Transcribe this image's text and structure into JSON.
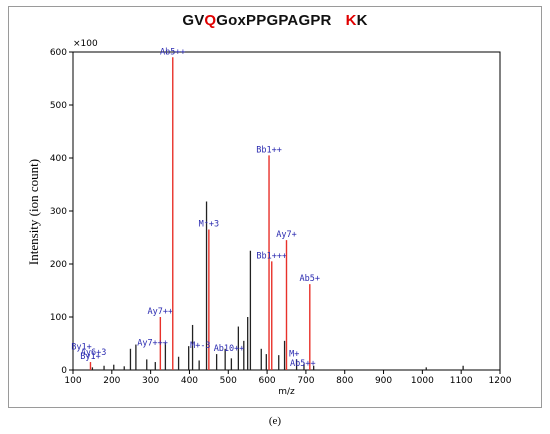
{
  "title": {
    "part1": "GV",
    "part2": "Q",
    "part3": "GoxPPGPAGPR",
    "part4": "K",
    "part5": "K"
  },
  "caption": "(e)",
  "colors": {
    "annotated": "#e8312a",
    "unannotated": "#222222",
    "label": "#2a2ab0",
    "highlight": "#e00000"
  },
  "chart_data": {
    "type": "bar",
    "title": "GVQGoxPPGPAGPR KK",
    "xlabel": "m/z",
    "ylabel": "Intensity (ion count)",
    "y_multiplier_label": "×100",
    "xlim": [
      100,
      1200
    ],
    "ylim": [
      0,
      600
    ],
    "x_ticks": [
      100,
      200,
      300,
      400,
      500,
      600,
      700,
      800,
      900,
      1000,
      1100,
      1200
    ],
    "y_ticks": [
      0,
      100,
      200,
      300,
      400,
      500,
      600
    ],
    "annotated_peaks": [
      {
        "mz": 145,
        "intensity": 15,
        "label": "By1+"
      },
      {
        "mz": 325,
        "intensity": 100,
        "label": "Ay7++"
      },
      {
        "mz": 357,
        "intensity": 590,
        "label": "Ab5++"
      },
      {
        "mz": 450,
        "intensity": 265,
        "label": "M⁺+3"
      },
      {
        "mz": 605,
        "intensity": 405,
        "label": "Bb1++"
      },
      {
        "mz": 612,
        "intensity": 205,
        "label": "Bb1+++"
      },
      {
        "mz": 650,
        "intensity": 245,
        "label": "Ay7+"
      },
      {
        "mz": 710,
        "intensity": 162,
        "label": "Ab5+"
      }
    ],
    "unannotated_peaks": [
      {
        "mz": 150,
        "intensity": 5
      },
      {
        "mz": 180,
        "intensity": 8
      },
      {
        "mz": 205,
        "intensity": 10
      },
      {
        "mz": 232,
        "intensity": 7
      },
      {
        "mz": 248,
        "intensity": 40
      },
      {
        "mz": 262,
        "intensity": 48
      },
      {
        "mz": 290,
        "intensity": 20
      },
      {
        "mz": 312,
        "intensity": 15
      },
      {
        "mz": 338,
        "intensity": 52
      },
      {
        "mz": 372,
        "intensity": 25
      },
      {
        "mz": 398,
        "intensity": 45
      },
      {
        "mz": 408,
        "intensity": 85
      },
      {
        "mz": 425,
        "intensity": 18
      },
      {
        "mz": 444,
        "intensity": 318
      },
      {
        "mz": 470,
        "intensity": 30
      },
      {
        "mz": 492,
        "intensity": 40
      },
      {
        "mz": 508,
        "intensity": 22
      },
      {
        "mz": 526,
        "intensity": 82
      },
      {
        "mz": 540,
        "intensity": 55
      },
      {
        "mz": 550,
        "intensity": 100
      },
      {
        "mz": 557,
        "intensity": 225
      },
      {
        "mz": 585,
        "intensity": 40
      },
      {
        "mz": 598,
        "intensity": 30
      },
      {
        "mz": 630,
        "intensity": 28
      },
      {
        "mz": 645,
        "intensity": 55
      },
      {
        "mz": 676,
        "intensity": 20
      },
      {
        "mz": 695,
        "intensity": 12
      },
      {
        "mz": 720,
        "intensity": 8
      },
      {
        "mz": 1010,
        "intensity": 5
      },
      {
        "mz": 1105,
        "intensity": 8
      }
    ],
    "minor_labels": [
      {
        "mz": 122,
        "intensity": 35,
        "text": "By1+"
      },
      {
        "mz": 153,
        "intensity": 25,
        "text": "Ay6+3"
      },
      {
        "mz": 305,
        "intensity": 42,
        "text": "Ay7+++"
      },
      {
        "mz": 428,
        "intensity": 38,
        "text": "M+-3"
      },
      {
        "mz": 502,
        "intensity": 32,
        "text": "Ab10++"
      },
      {
        "mz": 670,
        "intensity": 22,
        "text": "M+"
      },
      {
        "mz": 692,
        "intensity": 4,
        "text": "Ab5++"
      }
    ]
  }
}
